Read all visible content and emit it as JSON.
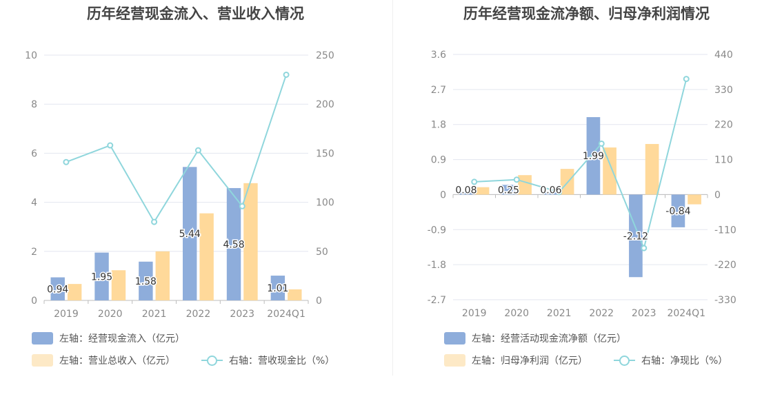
{
  "colors": {
    "bar_primary": "#8eaddb",
    "bar_secondary": "#ffd99a",
    "legend_secondary": "#fde9c6",
    "line": "#8fd6dc",
    "grid": "#e3e6ef",
    "axis": "#bcbcbc",
    "tick": "#888888",
    "label": "#333333"
  },
  "chart_data": [
    {
      "type": "bar",
      "title": "历年经营现金流入、营业收入情况",
      "categories": [
        "2019",
        "2020",
        "2021",
        "2022",
        "2023",
        "2024Q1"
      ],
      "y_left": {
        "range": [
          0,
          10
        ],
        "ticks": [
          "10",
          "8",
          "6",
          "4",
          "2",
          "0"
        ]
      },
      "y_right": {
        "range": [
          0,
          250
        ],
        "ticks": [
          "250",
          "200",
          "150",
          "100",
          "50",
          "0"
        ]
      },
      "grid": true,
      "legend_placement": "bottom-left",
      "series": [
        {
          "name": "左轴：经营现金流入（亿元）",
          "type": "bar",
          "axis": "left",
          "values": [
            0.94,
            1.95,
            1.58,
            5.44,
            4.58,
            1.01
          ],
          "labels": [
            "0.94",
            "1.95",
            "1.58",
            "5.44",
            "4.58",
            "1.01"
          ]
        },
        {
          "name": "左轴：营业总收入（亿元）",
          "type": "bar",
          "axis": "left",
          "values": [
            0.67,
            1.23,
            2.0,
            3.55,
            4.78,
            0.45
          ]
        },
        {
          "name": "右轴：营收现金比（%）",
          "type": "line",
          "axis": "right",
          "values": [
            141,
            158,
            80,
            153,
            96,
            230
          ]
        }
      ]
    },
    {
      "type": "bar",
      "title": "历年经营现金流净额、归母净利润情况",
      "categories": [
        "2019",
        "2020",
        "2021",
        "2022",
        "2023",
        "2024Q1"
      ],
      "y_left": {
        "range": [
          -2.7,
          3.6
        ],
        "ticks": [
          "3.6",
          "2.7",
          "1.8",
          "0.9",
          "0",
          "-0.9",
          "-1.8",
          "-2.7"
        ]
      },
      "y_right": {
        "range": [
          -330,
          440
        ],
        "ticks": [
          "440",
          "330",
          "220",
          "110",
          "0",
          "-110",
          "-220",
          "-330"
        ]
      },
      "grid": true,
      "legend_placement": "bottom-left",
      "series": [
        {
          "name": "左轴：经营活动现金流净额（亿元）",
          "type": "bar",
          "axis": "left",
          "values": [
            0.08,
            0.25,
            0.06,
            1.99,
            -2.12,
            -0.84
          ],
          "labels": [
            "0.08",
            "0.25",
            "0.06",
            "1.99",
            "-2.12",
            "-0.84"
          ]
        },
        {
          "name": "左轴：归母净利润（亿元）",
          "type": "bar",
          "axis": "left",
          "values": [
            0.19,
            0.5,
            0.66,
            1.21,
            1.3,
            -0.25
          ]
        },
        {
          "name": "右轴：净现比（%）",
          "type": "line",
          "axis": "right",
          "values": [
            40,
            47,
            8,
            160,
            -168,
            363
          ]
        }
      ]
    }
  ]
}
